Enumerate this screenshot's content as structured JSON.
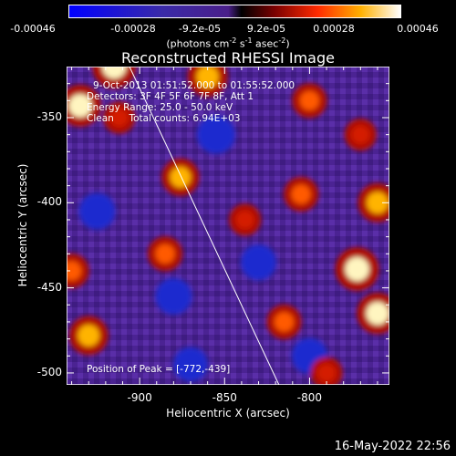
{
  "colorbar": {
    "ticks": [
      "-0.00046",
      "-0.00028",
      "-9.2e-05",
      "9.2e-05",
      "0.00028",
      "0.00046"
    ],
    "unit_prefix": "(photons cm",
    "unit_sup1": "-2",
    "unit_mid": " s",
    "unit_sup2": "-1",
    "unit_mid2": " asec",
    "unit_sup3": "-2",
    "unit_suffix": ")"
  },
  "annotations": {
    "time_range": "9-Oct-2013 01:51:52.000 to 01:55:52.000",
    "detectors": "Detectors: 3F 4F 5F 6F 7F 8F, Att 1",
    "energy": "Energy Range: 25.0 - 50.0 keV",
    "clean": "Clean     Total counts: 6.94E+03",
    "peak": "Position of Peak = [-772,-439]"
  },
  "footer": {
    "timestamp": "16-May-2022 22:56"
  },
  "chart_data": {
    "type": "heatmap",
    "title": "Reconstructed RHESSI Image",
    "xlabel": "Heliocentric X (arcsec)",
    "ylabel": "Heliocentric Y (arcsec)",
    "xlim": [
      -943,
      -753
    ],
    "ylim": [
      -507,
      -320
    ],
    "xticks": [
      -900,
      -850,
      -800
    ],
    "yticks": [
      -350,
      -400,
      -450,
      -500
    ],
    "xtick_labels": [
      "-900",
      "-850",
      "-800"
    ],
    "ytick_labels": [
      "-350",
      "-400",
      "-450",
      "-500"
    ],
    "value_range": [
      -0.00046,
      0.00046
    ],
    "limb_line": [
      [
        -906,
        -320
      ],
      [
        -818,
        -507
      ]
    ],
    "hotspots": [
      {
        "x": -915,
        "y": -320,
        "value": 0.00046
      },
      {
        "x": -860,
        "y": -326,
        "value": 0.0004
      },
      {
        "x": -935,
        "y": -343,
        "value": 0.00043
      },
      {
        "x": -912,
        "y": -350,
        "value": 0.00025
      },
      {
        "x": -800,
        "y": -340,
        "value": 0.0003
      },
      {
        "x": -770,
        "y": -360,
        "value": 0.00025
      },
      {
        "x": -876,
        "y": -385,
        "value": 0.00035
      },
      {
        "x": -805,
        "y": -395,
        "value": 0.0003
      },
      {
        "x": -760,
        "y": -400,
        "value": 0.00038
      },
      {
        "x": -838,
        "y": -410,
        "value": 0.00025
      },
      {
        "x": -885,
        "y": -430,
        "value": 0.0003
      },
      {
        "x": -940,
        "y": -440,
        "value": 0.0003
      },
      {
        "x": -772,
        "y": -439,
        "value": 0.00046
      },
      {
        "x": -760,
        "y": -465,
        "value": 0.00042
      },
      {
        "x": -815,
        "y": -470,
        "value": 0.0003
      },
      {
        "x": -930,
        "y": -478,
        "value": 0.00038
      },
      {
        "x": -790,
        "y": -500,
        "value": 0.00025
      }
    ],
    "coldspots": [
      {
        "x": -855,
        "y": -360,
        "value": -0.00035
      },
      {
        "x": -925,
        "y": -405,
        "value": -0.0003
      },
      {
        "x": -880,
        "y": -455,
        "value": -0.0003
      },
      {
        "x": -830,
        "y": -435,
        "value": -0.00028
      },
      {
        "x": -870,
        "y": -495,
        "value": -0.00025
      },
      {
        "x": -800,
        "y": -490,
        "value": -0.00028
      }
    ]
  }
}
